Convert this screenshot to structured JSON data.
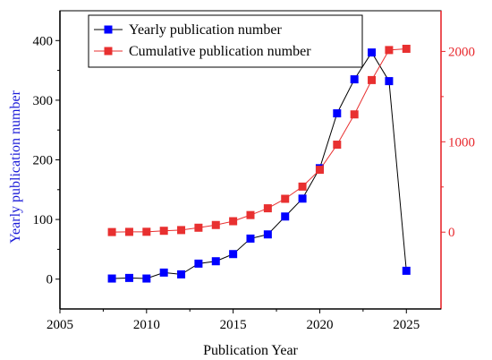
{
  "chart_data": {
    "type": "line",
    "title": "",
    "xlabel": "Publication Year",
    "ylabel_left": "Yearly publication number",
    "ylabel_right": "",
    "xlim": [
      2005,
      2027
    ],
    "ylim_left": [
      -50,
      450
    ],
    "ylim_right": [
      -850,
      2450
    ],
    "x_ticks": [
      2005,
      2010,
      2015,
      2020,
      2025
    ],
    "y_left_ticks": [
      0,
      100,
      200,
      300,
      400
    ],
    "y_right_ticks": [
      0,
      1000,
      2000
    ],
    "grid": false,
    "legend_position": "top-left",
    "colors": {
      "left_axis": "#000000",
      "right_axis": "#e8282d",
      "left_label": "#1a1ad8"
    },
    "x": [
      2008,
      2009,
      2010,
      2011,
      2012,
      2013,
      2014,
      2015,
      2016,
      2017,
      2018,
      2019,
      2020,
      2021,
      2022,
      2023,
      2024,
      2025
    ],
    "series": [
      {
        "name": "Yearly publication number",
        "axis": "left",
        "marker_color": "#0000ff",
        "line_color": "#000000",
        "values": [
          1,
          2,
          1,
          11,
          8,
          26,
          30,
          42,
          68,
          75,
          105,
          135,
          186,
          278,
          335,
          380,
          332,
          14
        ]
      },
      {
        "name": "Cumulative publication number",
        "axis": "right",
        "marker_color": "#e83030",
        "line_color": "#e83030",
        "values": [
          1,
          3,
          4,
          15,
          23,
          49,
          79,
          121,
          189,
          264,
          369,
          504,
          690,
          968,
          1303,
          1683,
          2015,
          2029
        ]
      }
    ]
  }
}
